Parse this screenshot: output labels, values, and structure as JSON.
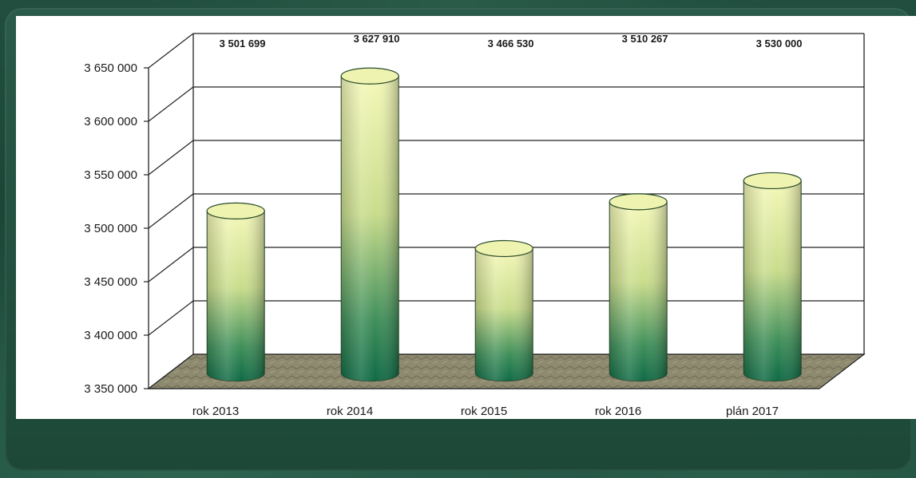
{
  "chart_data": {
    "type": "bar",
    "title": "",
    "xlabel": "",
    "ylabel": "",
    "categories": [
      "rok 2013",
      "rok 2014",
      "rok 2015",
      "rok 2016",
      "plán 2017"
    ],
    "values": [
      3501699,
      3627910,
      3466530,
      3510267,
      3530000
    ],
    "value_labels": [
      "3 501 699",
      "3 627 910",
      "3 466 530",
      "3 510 267",
      "3 530 000"
    ],
    "ylim": [
      3350000,
      3650000
    ],
    "yticks": [
      3350000,
      3400000,
      3450000,
      3500000,
      3550000,
      3600000,
      3650000
    ],
    "ytick_labels": [
      "3 350 000",
      "3 400 000",
      "3 450 000",
      "3 500 000",
      "3 550 000",
      "3 600 000",
      "3 650 000"
    ],
    "grid": true,
    "bar_style": "3d-cylinder",
    "colors": {
      "bar_top": "#f3f7b4",
      "bar_bottom": "#0f6b45",
      "floor": "#8d8a6f",
      "background": "#1f4a3c"
    }
  }
}
